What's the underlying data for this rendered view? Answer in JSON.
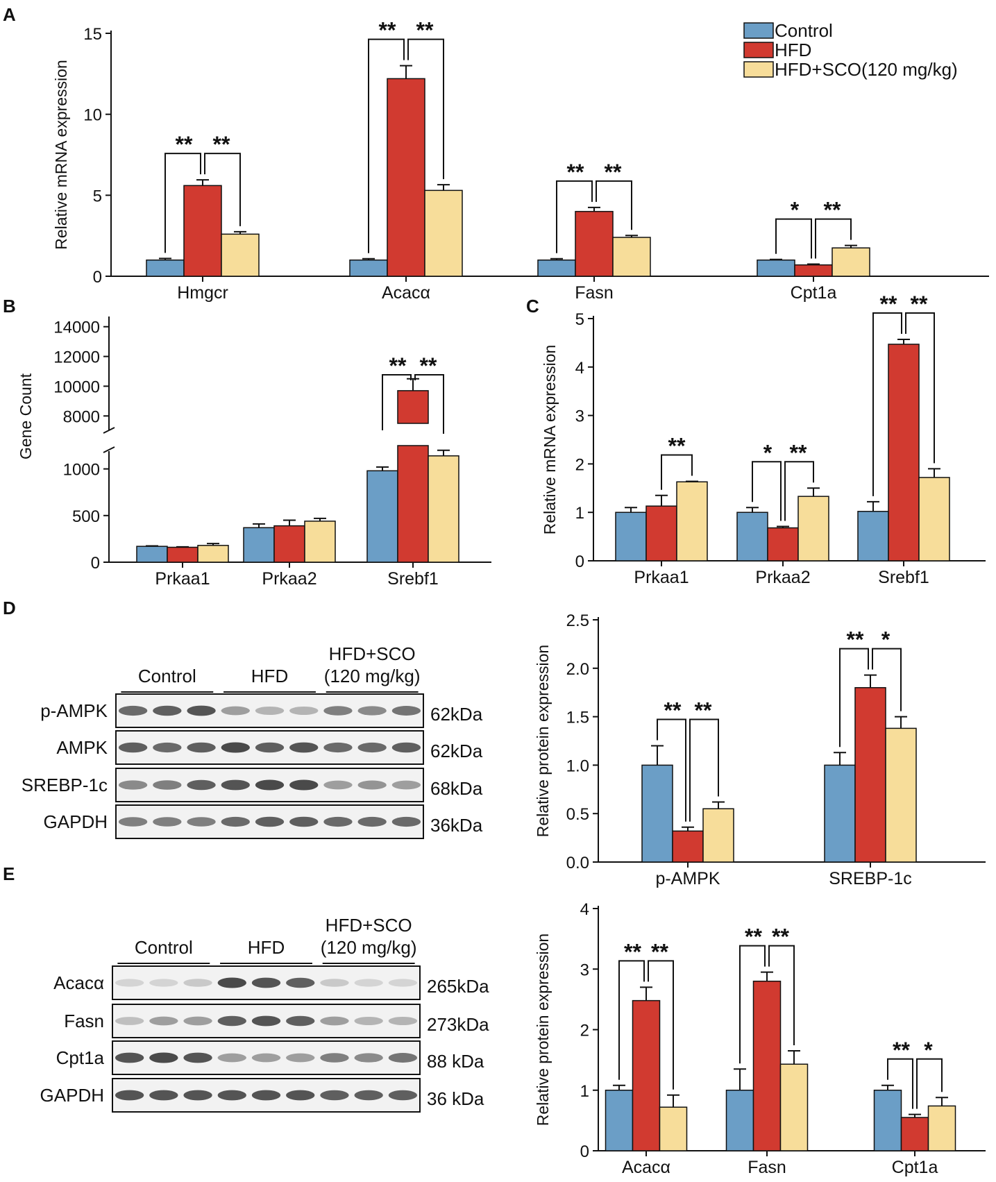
{
  "colors": {
    "control": "#6b9ec6",
    "hfd": "#d13a30",
    "sco": "#f7dd9a",
    "axis": "#111111"
  },
  "legend": [
    "Control",
    "HFD",
    "HFD+SCO(120 mg/kg)"
  ],
  "chart_data": [
    {
      "panel": "A",
      "type": "bar",
      "ylabel": "Relative mRNA expression",
      "ylim": [
        0,
        15
      ],
      "ticks": [
        0,
        5,
        10,
        15
      ],
      "categories": [
        "Hmgcr",
        "Acacα",
        "Fasn",
        "Cpt1a"
      ],
      "series": [
        {
          "name": "Control",
          "values": [
            1.0,
            1.0,
            1.0,
            1.0
          ],
          "err": [
            0.1,
            0.08,
            0.08,
            0.04
          ]
        },
        {
          "name": "HFD",
          "values": [
            5.6,
            12.2,
            4.0,
            0.7
          ],
          "err": [
            0.35,
            0.8,
            0.25,
            0.05
          ]
        },
        {
          "name": "HFD+SCO(120 mg/kg)",
          "values": [
            2.6,
            5.3,
            2.4,
            1.75
          ],
          "err": [
            0.15,
            0.35,
            0.12,
            0.15
          ]
        }
      ],
      "sig": [
        {
          "cat": 0,
          "left": "**",
          "right": "**"
        },
        {
          "cat": 1,
          "left": "**",
          "right": "**"
        },
        {
          "cat": 2,
          "left": "**",
          "right": "**"
        },
        {
          "cat": 3,
          "left": "*",
          "right": "**"
        }
      ]
    },
    {
      "panel": "B",
      "type": "bar",
      "ylabel": "Gene Count",
      "broken_axis": true,
      "lower_ticks": [
        0,
        500,
        1000
      ],
      "upper_ticks": [
        8000,
        10000,
        12000,
        14000
      ],
      "categories": [
        "Prkaa1",
        "Prkaa2",
        "Srebf1"
      ],
      "series": [
        {
          "name": "Control",
          "values": [
            170,
            370,
            980
          ],
          "err": [
            5,
            40,
            40
          ]
        },
        {
          "name": "HFD",
          "values": [
            160,
            390,
            9700
          ],
          "err": [
            5,
            60,
            800
          ]
        },
        {
          "name": "HFD+SCO(120 mg/kg)",
          "values": [
            180,
            440,
            1140
          ],
          "err": [
            20,
            30,
            60
          ]
        }
      ],
      "sig": [
        {
          "cat": 2,
          "left": "**",
          "right": "**"
        }
      ]
    },
    {
      "panel": "C",
      "type": "bar",
      "ylabel": "Relative mRNA expression",
      "ylim": [
        0,
        5
      ],
      "ticks": [
        0,
        1,
        2,
        3,
        4,
        5
      ],
      "categories": [
        "Prkaa1",
        "Prkaa2",
        "Srebf1"
      ],
      "series": [
        {
          "name": "Control",
          "values": [
            1.0,
            1.0,
            1.02
          ],
          "err": [
            0.1,
            0.1,
            0.2
          ]
        },
        {
          "name": "HFD",
          "values": [
            1.13,
            0.68,
            4.47
          ],
          "err": [
            0.22,
            0.03,
            0.1
          ]
        },
        {
          "name": "HFD+SCO(120 mg/kg)",
          "values": [
            1.63,
            1.33,
            1.72
          ],
          "err": [
            0.01,
            0.17,
            0.18
          ]
        }
      ],
      "sig": [
        {
          "cat": 0,
          "right": "**"
        },
        {
          "cat": 1,
          "left": "*",
          "right": "**"
        },
        {
          "cat": 2,
          "left": "**",
          "right": "**"
        }
      ]
    },
    {
      "panel": "D",
      "type": "bar",
      "ylabel": "Relative protein expression",
      "ylim": [
        0,
        2.5
      ],
      "ticks": [
        "0.0",
        "0.5",
        "1.0",
        "1.5",
        "2.0",
        "2.5"
      ],
      "categories": [
        "p-AMPK",
        "SREBP-1c"
      ],
      "series": [
        {
          "name": "Control",
          "values": [
            1.0,
            1.0
          ],
          "err": [
            0.2,
            0.13
          ]
        },
        {
          "name": "HFD",
          "values": [
            0.32,
            1.8
          ],
          "err": [
            0.04,
            0.13
          ]
        },
        {
          "name": "HFD+SCO(120 mg/kg)",
          "values": [
            0.55,
            1.38
          ],
          "err": [
            0.07,
            0.12
          ]
        }
      ],
      "sig": [
        {
          "cat": 0,
          "left": "**",
          "right": "**"
        },
        {
          "cat": 1,
          "left": "**",
          "right": "*"
        }
      ]
    },
    {
      "panel": "E",
      "type": "bar",
      "ylabel": "Relative protein expression",
      "ylim": [
        0,
        4
      ],
      "ticks": [
        0,
        1,
        2,
        3,
        4
      ],
      "categories": [
        "Acacα",
        "Fasn",
        "Cpt1a"
      ],
      "series": [
        {
          "name": "Control",
          "values": [
            1.0,
            1.0,
            1.0
          ],
          "err": [
            0.08,
            0.35,
            0.08
          ]
        },
        {
          "name": "HFD",
          "values": [
            2.48,
            2.8,
            0.55
          ],
          "err": [
            0.22,
            0.15,
            0.05
          ]
        },
        {
          "name": "HFD+SCO(120 mg/kg)",
          "values": [
            0.72,
            1.43,
            0.74
          ],
          "err": [
            0.2,
            0.22,
            0.14
          ]
        }
      ],
      "sig": [
        {
          "cat": 0,
          "left": "**",
          "right": "**"
        },
        {
          "cat": 1,
          "left": "**",
          "right": "**"
        },
        {
          "cat": 2,
          "left": "**",
          "right": "*"
        }
      ]
    }
  ],
  "blots": {
    "D": {
      "groups": [
        "Control",
        "HFD",
        "HFD+SCO\n(120 mg/kg)"
      ],
      "rows": [
        {
          "label": "p-AMPK",
          "kda": "62kDa",
          "int": [
            0.7,
            0.75,
            0.8,
            0.45,
            0.35,
            0.35,
            0.6,
            0.55,
            0.65
          ]
        },
        {
          "label": "AMPK",
          "kda": "62kDa",
          "int": [
            0.75,
            0.7,
            0.75,
            0.85,
            0.75,
            0.8,
            0.7,
            0.7,
            0.75
          ]
        },
        {
          "label": "SREBP-1c",
          "kda": "68kDa",
          "int": [
            0.55,
            0.6,
            0.75,
            0.8,
            0.85,
            0.85,
            0.45,
            0.5,
            0.45
          ]
        },
        {
          "label": "GAPDH",
          "kda": "36kDa",
          "int": [
            0.6,
            0.6,
            0.6,
            0.7,
            0.75,
            0.75,
            0.7,
            0.7,
            0.7
          ]
        }
      ]
    },
    "E": {
      "groups": [
        "Control",
        "HFD",
        "HFD+SCO\n(120 mg/kg)"
      ],
      "rows": [
        {
          "label": "Acacα",
          "kda": "265kDa",
          "int": [
            0.2,
            0.2,
            0.25,
            0.85,
            0.8,
            0.75,
            0.25,
            0.2,
            0.2
          ]
        },
        {
          "label": "Fasn",
          "kda": "273kDa",
          "int": [
            0.3,
            0.45,
            0.45,
            0.75,
            0.8,
            0.75,
            0.45,
            0.35,
            0.35
          ]
        },
        {
          "label": "Cpt1a",
          "kda": "88  kDa",
          "int": [
            0.8,
            0.85,
            0.8,
            0.45,
            0.45,
            0.45,
            0.6,
            0.55,
            0.65
          ]
        },
        {
          "label": "GAPDH",
          "kda": "36  kDa",
          "int": [
            0.8,
            0.8,
            0.8,
            0.8,
            0.8,
            0.8,
            0.75,
            0.75,
            0.75
          ]
        }
      ]
    }
  }
}
